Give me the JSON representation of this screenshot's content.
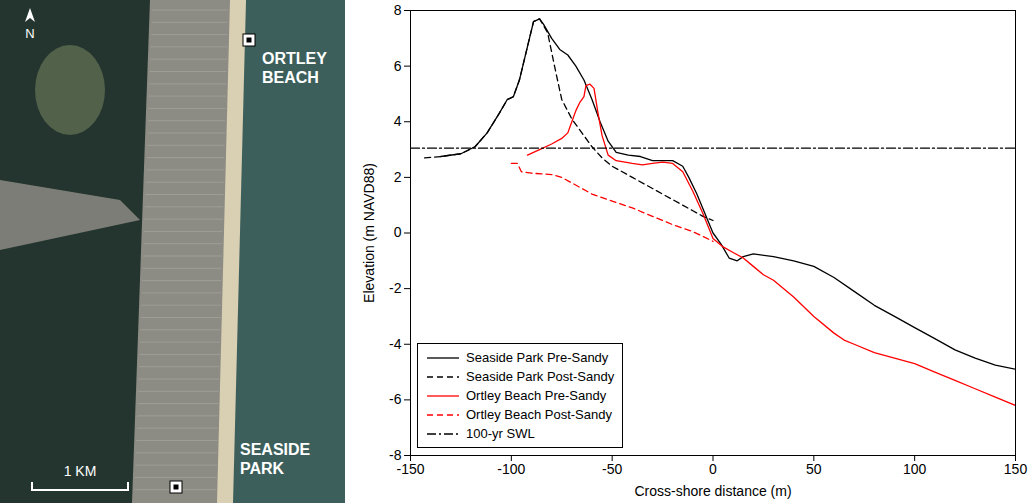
{
  "map": {
    "north": "N",
    "places": [
      {
        "name": "ORTLEY BEACH"
      },
      {
        "name": "SEASIDE PARK"
      }
    ],
    "scale_bar": "1 KM"
  },
  "chart_data": {
    "type": "line",
    "x_label": "Cross-shore distance (m)",
    "y_label": "Elevation (m NAVD88)",
    "xlim": [
      -150,
      150
    ],
    "xticks": [
      -150,
      -100,
      -50,
      0,
      50,
      100,
      150
    ],
    "ylim": [
      -8,
      8
    ],
    "yticks": [
      -8,
      -6,
      -4,
      -2,
      0,
      2,
      4,
      6,
      8
    ],
    "grid": false,
    "legend": "lower left",
    "series": [
      {
        "name": "Seaside Park Pre-Sandy",
        "color": "#000000",
        "line_style": "solid",
        "x": [
          -135,
          -125,
          -118,
          -112,
          -106,
          -102,
          -99,
          -96,
          -92,
          -89,
          -86,
          -84,
          -80,
          -76,
          -72,
          -68,
          -64,
          -60,
          -56,
          -52,
          -48,
          -42,
          -36,
          -30,
          -25,
          -20,
          -15,
          -12,
          -8,
          -4,
          0,
          4,
          8,
          12,
          15,
          20,
          30,
          40,
          50,
          60,
          70,
          80,
          90,
          100,
          110,
          120,
          130,
          140,
          150
        ],
        "values": [
          2.75,
          2.85,
          3.1,
          3.6,
          4.3,
          4.8,
          4.9,
          5.5,
          6.7,
          7.6,
          7.7,
          7.5,
          7.0,
          6.6,
          6.4,
          6.0,
          5.5,
          4.8,
          4.0,
          3.3,
          2.9,
          2.8,
          2.75,
          2.6,
          2.6,
          2.6,
          2.4,
          2.0,
          1.4,
          0.7,
          0.0,
          -0.4,
          -0.9,
          -1.0,
          -0.85,
          -0.75,
          -0.85,
          -1.0,
          -1.2,
          -1.6,
          -2.1,
          -2.6,
          -3.0,
          -3.4,
          -3.8,
          -4.2,
          -4.5,
          -4.75,
          -4.9
        ]
      },
      {
        "name": "Seaside Park Post-Sandy",
        "color": "#000000",
        "line_style": "dashed",
        "x": [
          -143,
          -135,
          -125,
          -118,
          -112,
          -106,
          -102,
          -99,
          -96,
          -92,
          -89,
          -86,
          -82,
          -78,
          -75,
          -70,
          -65,
          -60,
          -55,
          -50,
          -40,
          -30,
          -20,
          -10,
          -5,
          0
        ],
        "values": [
          2.7,
          2.75,
          2.85,
          3.1,
          3.6,
          4.3,
          4.8,
          4.9,
          5.5,
          6.7,
          7.6,
          7.7,
          7.2,
          5.8,
          4.8,
          4.1,
          3.6,
          3.1,
          2.7,
          2.4,
          2.0,
          1.6,
          1.2,
          0.8,
          0.6,
          0.45
        ]
      },
      {
        "name": "Ortley Beach Pre-Sandy",
        "color": "#ff0000",
        "line_style": "solid",
        "x": [
          -92,
          -86,
          -80,
          -75,
          -72,
          -70,
          -68,
          -66,
          -64,
          -63,
          -61,
          -59,
          -57,
          -55,
          -52,
          -48,
          -40,
          -35,
          -30,
          -25,
          -20,
          -15,
          -10,
          -5,
          0,
          5,
          10,
          15,
          20,
          25,
          30,
          40,
          50,
          60,
          65,
          70,
          80,
          90,
          100,
          110,
          120,
          130,
          140,
          150
        ],
        "values": [
          2.8,
          3.0,
          3.2,
          3.4,
          3.6,
          4.0,
          4.4,
          4.7,
          4.9,
          5.3,
          5.35,
          5.2,
          4.3,
          3.5,
          2.8,
          2.6,
          2.5,
          2.45,
          2.5,
          2.55,
          2.5,
          2.2,
          1.5,
          0.7,
          -0.2,
          -0.5,
          -0.7,
          -0.9,
          -1.2,
          -1.5,
          -1.7,
          -2.3,
          -3.0,
          -3.6,
          -3.85,
          -4.0,
          -4.3,
          -4.5,
          -4.7,
          -5.0,
          -5.3,
          -5.6,
          -5.9,
          -6.2
        ]
      },
      {
        "name": "Ortley Beach Post-Sandy",
        "color": "#ff0000",
        "line_style": "dashed",
        "x": [
          -100,
          -97,
          -95,
          -90,
          -80,
          -75,
          -70,
          -65,
          -60,
          -50,
          -40,
          -30,
          -20,
          -10,
          0
        ],
        "values": [
          2.5,
          2.5,
          2.2,
          2.15,
          2.1,
          2.0,
          1.8,
          1.6,
          1.4,
          1.15,
          0.9,
          0.6,
          0.3,
          0.05,
          -0.3
        ]
      },
      {
        "name": "100-yr SWL",
        "color": "#000000",
        "line_style": "dashdot",
        "x": [
          -150,
          150
        ],
        "values": [
          3.05,
          3.05
        ]
      }
    ]
  }
}
